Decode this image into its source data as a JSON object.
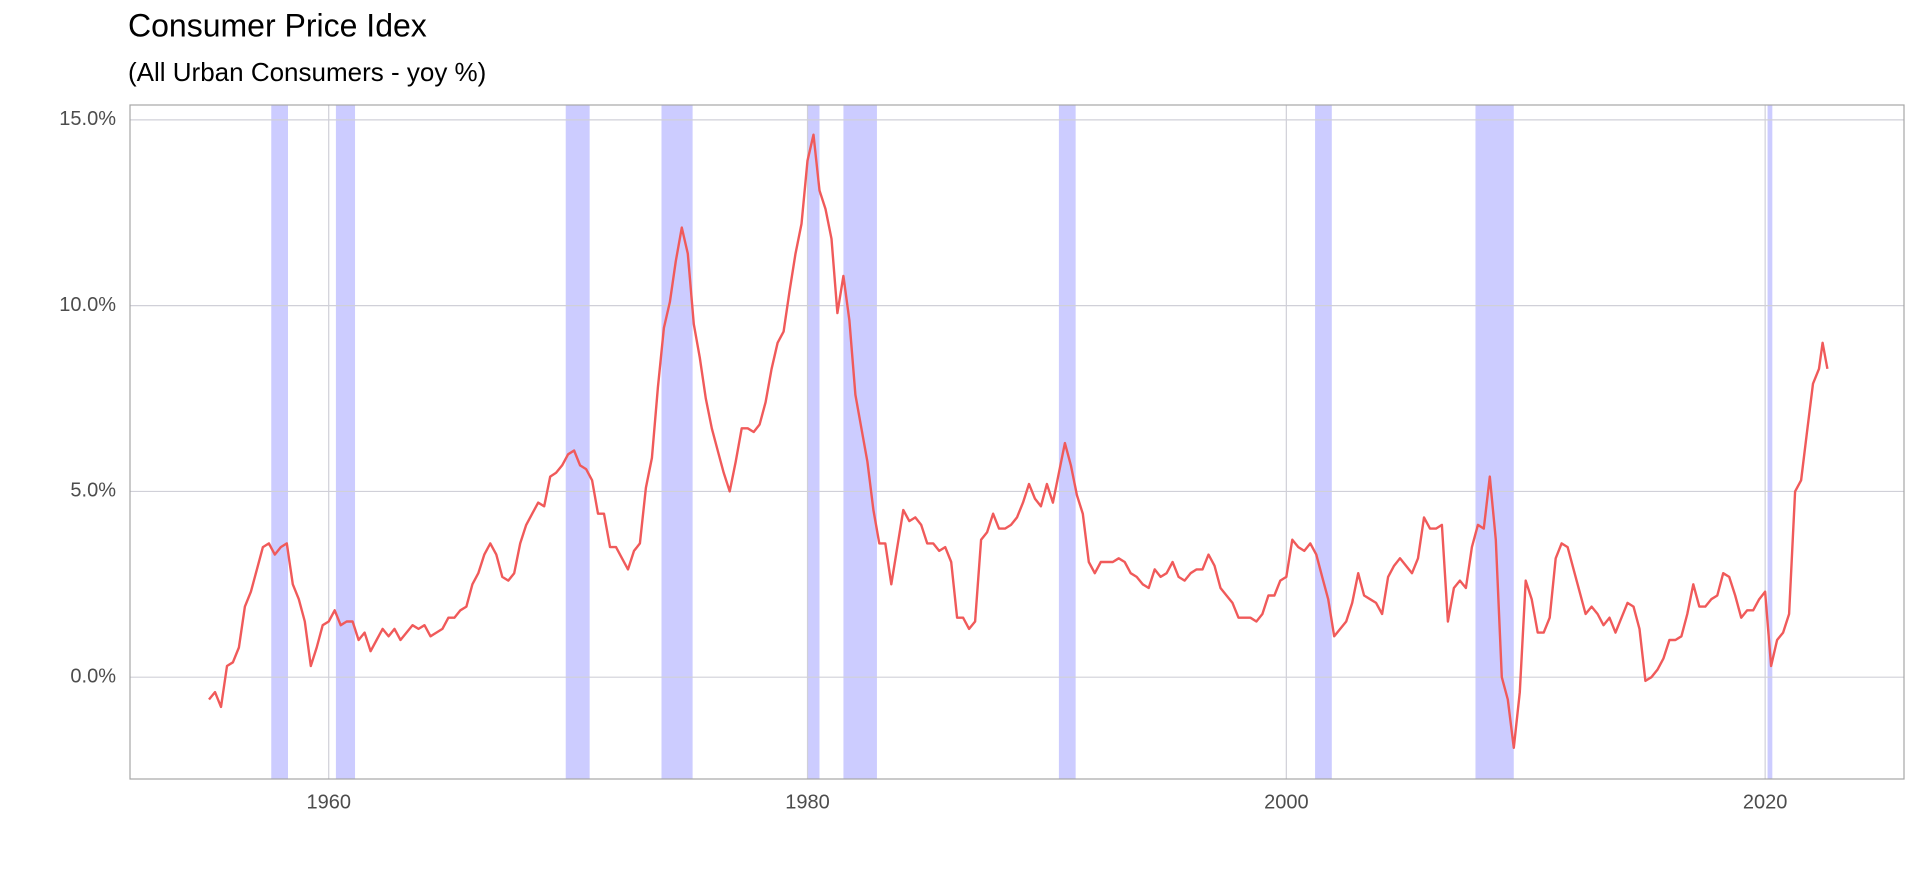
{
  "chart_data": {
    "type": "line",
    "title": "Consumer Price Idex",
    "subtitle": "(All Urban Consumers - yoy %)",
    "color": "#f05a5a",
    "shade_color": "#0000ff",
    "grid": true,
    "xlim": [
      1951.7,
      2025.8
    ],
    "xticks": [
      1960,
      1980,
      2000,
      2020
    ],
    "ylim": [
      -2.74,
      15.4
    ],
    "yticks": [
      {
        "value": 0,
        "label": "0.0%"
      },
      {
        "value": 5,
        "label": "5.0%"
      },
      {
        "value": 10,
        "label": "10.0%"
      },
      {
        "value": 15,
        "label": "15.0%"
      }
    ],
    "recessions": [
      {
        "start": 1957.6,
        "end": 1958.3
      },
      {
        "start": 1960.3,
        "end": 1961.1
      },
      {
        "start": 1969.9,
        "end": 1970.9
      },
      {
        "start": 1973.9,
        "end": 1975.2
      },
      {
        "start": 1980.0,
        "end": 1980.5
      },
      {
        "start": 1981.5,
        "end": 1982.9
      },
      {
        "start": 1990.5,
        "end": 1991.2
      },
      {
        "start": 2001.2,
        "end": 2001.9
      },
      {
        "start": 2007.9,
        "end": 2009.5
      },
      {
        "start": 2020.1,
        "end": 2020.3
      }
    ],
    "x": [
      1955.0,
      1955.25,
      1955.5,
      1955.75,
      1956.0,
      1956.25,
      1956.5,
      1956.75,
      1957.0,
      1957.25,
      1957.5,
      1957.75,
      1958.0,
      1958.25,
      1958.5,
      1958.75,
      1959.0,
      1959.25,
      1959.5,
      1959.75,
      1960.0,
      1960.25,
      1960.5,
      1960.75,
      1961.0,
      1961.25,
      1961.5,
      1961.75,
      1962.0,
      1962.25,
      1962.5,
      1962.75,
      1963.0,
      1963.25,
      1963.5,
      1963.75,
      1964.0,
      1964.25,
      1964.5,
      1964.75,
      1965.0,
      1965.25,
      1965.5,
      1965.75,
      1966.0,
      1966.25,
      1966.5,
      1966.75,
      1967.0,
      1967.25,
      1967.5,
      1967.75,
      1968.0,
      1968.25,
      1968.5,
      1968.75,
      1969.0,
      1969.25,
      1969.5,
      1969.75,
      1970.0,
      1970.25,
      1970.5,
      1970.75,
      1971.0,
      1971.25,
      1971.5,
      1971.75,
      1972.0,
      1972.25,
      1972.5,
      1972.75,
      1973.0,
      1973.25,
      1973.5,
      1973.75,
      1974.0,
      1974.25,
      1974.5,
      1974.75,
      1975.0,
      1975.25,
      1975.5,
      1975.75,
      1976.0,
      1976.25,
      1976.5,
      1976.75,
      1977.0,
      1977.25,
      1977.5,
      1977.75,
      1978.0,
      1978.25,
      1978.5,
      1978.75,
      1979.0,
      1979.25,
      1979.5,
      1979.75,
      1980.0,
      1980.25,
      1980.5,
      1980.75,
      1981.0,
      1981.25,
      1981.5,
      1981.75,
      1982.0,
      1982.25,
      1982.5,
      1982.75,
      1983.0,
      1983.25,
      1983.5,
      1983.75,
      1984.0,
      1984.25,
      1984.5,
      1984.75,
      1985.0,
      1985.25,
      1985.5,
      1985.75,
      1986.0,
      1986.25,
      1986.5,
      1986.75,
      1987.0,
      1987.25,
      1987.5,
      1987.75,
      1988.0,
      1988.25,
      1988.5,
      1988.75,
      1989.0,
      1989.25,
      1989.5,
      1989.75,
      1990.0,
      1990.25,
      1990.5,
      1990.75,
      1991.0,
      1991.25,
      1991.5,
      1991.75,
      1992.0,
      1992.25,
      1992.5,
      1992.75,
      1993.0,
      1993.25,
      1993.5,
      1993.75,
      1994.0,
      1994.25,
      1994.5,
      1994.75,
      1995.0,
      1995.25,
      1995.5,
      1995.75,
      1996.0,
      1996.25,
      1996.5,
      1996.75,
      1997.0,
      1997.25,
      1997.5,
      1997.75,
      1998.0,
      1998.25,
      1998.5,
      1998.75,
      1999.0,
      1999.25,
      1999.5,
      1999.75,
      2000.0,
      2000.25,
      2000.5,
      2000.75,
      2001.0,
      2001.25,
      2001.5,
      2001.75,
      2002.0,
      2002.25,
      2002.5,
      2002.75,
      2003.0,
      2003.25,
      2003.5,
      2003.75,
      2004.0,
      2004.25,
      2004.5,
      2004.75,
      2005.0,
      2005.25,
      2005.5,
      2005.75,
      2006.0,
      2006.25,
      2006.5,
      2006.75,
      2007.0,
      2007.25,
      2007.5,
      2007.75,
      2008.0,
      2008.25,
      2008.5,
      2008.75,
      2009.0,
      2009.25,
      2009.5,
      2009.75,
      2010.0,
      2010.25,
      2010.5,
      2010.75,
      2011.0,
      2011.25,
      2011.5,
      2011.75,
      2012.0,
      2012.25,
      2012.5,
      2012.75,
      2013.0,
      2013.25,
      2013.5,
      2013.75,
      2014.0,
      2014.25,
      2014.5,
      2014.75,
      2015.0,
      2015.25,
      2015.5,
      2015.75,
      2016.0,
      2016.25,
      2016.5,
      2016.75,
      2017.0,
      2017.25,
      2017.5,
      2017.75,
      2018.0,
      2018.25,
      2018.5,
      2018.75,
      2019.0,
      2019.25,
      2019.5,
      2019.75,
      2020.0,
      2020.25,
      2020.5,
      2020.75,
      2021.0,
      2021.25,
      2021.5,
      2021.75,
      2022.0,
      2022.25,
      2022.4,
      2022.6
    ],
    "values": [
      -0.6,
      -0.4,
      -0.8,
      0.3,
      0.4,
      0.8,
      1.9,
      2.3,
      2.9,
      3.5,
      3.6,
      3.3,
      3.5,
      3.6,
      2.5,
      2.1,
      1.5,
      0.3,
      0.8,
      1.4,
      1.5,
      1.8,
      1.4,
      1.5,
      1.5,
      1.0,
      1.2,
      0.7,
      1.0,
      1.3,
      1.1,
      1.3,
      1.0,
      1.2,
      1.4,
      1.3,
      1.4,
      1.1,
      1.2,
      1.3,
      1.6,
      1.6,
      1.8,
      1.9,
      2.5,
      2.8,
      3.3,
      3.6,
      3.3,
      2.7,
      2.6,
      2.8,
      3.6,
      4.1,
      4.4,
      4.7,
      4.6,
      5.4,
      5.5,
      5.7,
      6.0,
      6.1,
      5.7,
      5.6,
      5.3,
      4.4,
      4.4,
      3.5,
      3.5,
      3.2,
      2.9,
      3.4,
      3.6,
      5.1,
      5.9,
      7.8,
      9.4,
      10.1,
      11.2,
      12.1,
      11.4,
      9.5,
      8.6,
      7.5,
      6.7,
      6.1,
      5.5,
      5.0,
      5.8,
      6.7,
      6.7,
      6.6,
      6.8,
      7.4,
      8.3,
      9.0,
      9.3,
      10.4,
      11.4,
      12.2,
      13.9,
      14.6,
      13.1,
      12.6,
      11.8,
      9.8,
      10.8,
      9.6,
      7.6,
      6.7,
      5.8,
      4.5,
      3.6,
      3.6,
      2.5,
      3.5,
      4.5,
      4.2,
      4.3,
      4.1,
      3.6,
      3.6,
      3.4,
      3.5,
      3.1,
      1.6,
      1.6,
      1.3,
      1.5,
      3.7,
      3.9,
      4.4,
      4.0,
      4.0,
      4.1,
      4.3,
      4.7,
      5.2,
      4.8,
      4.6,
      5.2,
      4.7,
      5.5,
      6.3,
      5.7,
      4.9,
      4.4,
      3.1,
      2.8,
      3.1,
      3.1,
      3.1,
      3.2,
      3.1,
      2.8,
      2.7,
      2.5,
      2.4,
      2.9,
      2.7,
      2.8,
      3.1,
      2.7,
      2.6,
      2.8,
      2.9,
      2.9,
      3.3,
      3.0,
      2.4,
      2.2,
      2.0,
      1.6,
      1.6,
      1.6,
      1.5,
      1.7,
      2.2,
      2.2,
      2.6,
      2.7,
      3.7,
      3.5,
      3.4,
      3.6,
      3.3,
      2.7,
      2.1,
      1.1,
      1.3,
      1.5,
      2.0,
      2.8,
      2.2,
      2.1,
      2.0,
      1.7,
      2.7,
      3.0,
      3.2,
      3.0,
      2.8,
      3.2,
      4.3,
      4.0,
      4.0,
      4.1,
      1.5,
      2.4,
      2.6,
      2.4,
      3.5,
      4.1,
      4.0,
      5.4,
      3.7,
      0.0,
      -0.6,
      -1.9,
      -0.4,
      2.6,
      2.1,
      1.2,
      1.2,
      1.6,
      3.2,
      3.6,
      3.5,
      2.9,
      2.3,
      1.7,
      1.9,
      1.7,
      1.4,
      1.6,
      1.2,
      1.6,
      2.0,
      1.9,
      1.3,
      -0.1,
      0.0,
      0.2,
      0.5,
      1.0,
      1.0,
      1.1,
      1.7,
      2.5,
      1.9,
      1.9,
      2.1,
      2.2,
      2.8,
      2.7,
      2.2,
      1.6,
      1.8,
      1.8,
      2.1,
      2.3,
      0.3,
      1.0,
      1.2,
      1.7,
      5.0,
      5.3,
      6.6,
      7.9,
      8.3,
      9.0,
      8.3
    ]
  }
}
